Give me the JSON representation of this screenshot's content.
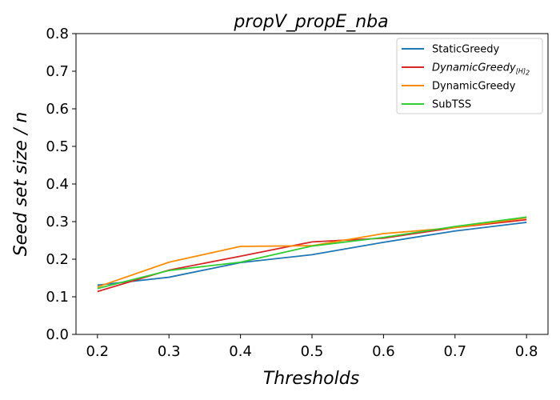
{
  "chart_data": {
    "type": "line",
    "title": "propV_propE_nba",
    "xlabel": "Thresholds",
    "ylabel": "Seed set size / n",
    "x": [
      0.2,
      0.3,
      0.4,
      0.5,
      0.6,
      0.7,
      0.8
    ],
    "x_ticks": [
      "0.2",
      "0.3",
      "0.4",
      "0.5",
      "0.6",
      "0.7",
      "0.8"
    ],
    "xlim": [
      0.17,
      0.83
    ],
    "ylim": [
      0.0,
      0.8
    ],
    "y_ticks": [
      "0.0",
      "0.1",
      "0.2",
      "0.3",
      "0.4",
      "0.5",
      "0.6",
      "0.7",
      "0.8"
    ],
    "grid": false,
    "legend_position": "top-right",
    "series": [
      {
        "name": "StaticGreedy",
        "color": "#1f77b4",
        "values": [
          0.131,
          0.152,
          0.191,
          0.212,
          0.245,
          0.275,
          0.298
        ]
      },
      {
        "name": "DynamicGreedy",
        "name_subscript": "[H]",
        "name_subscript_2": "2",
        "color": "#d62728",
        "values": [
          0.114,
          0.171,
          0.208,
          0.246,
          0.256,
          0.284,
          0.305
        ]
      },
      {
        "name": "DynamicGreedy",
        "color": "#ff8c00",
        "values": [
          0.126,
          0.192,
          0.234,
          0.236,
          0.268,
          0.284,
          0.31
        ]
      },
      {
        "name": "SubTSS",
        "color": "#32cd32",
        "values": [
          0.122,
          0.17,
          0.192,
          0.235,
          0.258,
          0.287,
          0.312
        ]
      }
    ]
  }
}
